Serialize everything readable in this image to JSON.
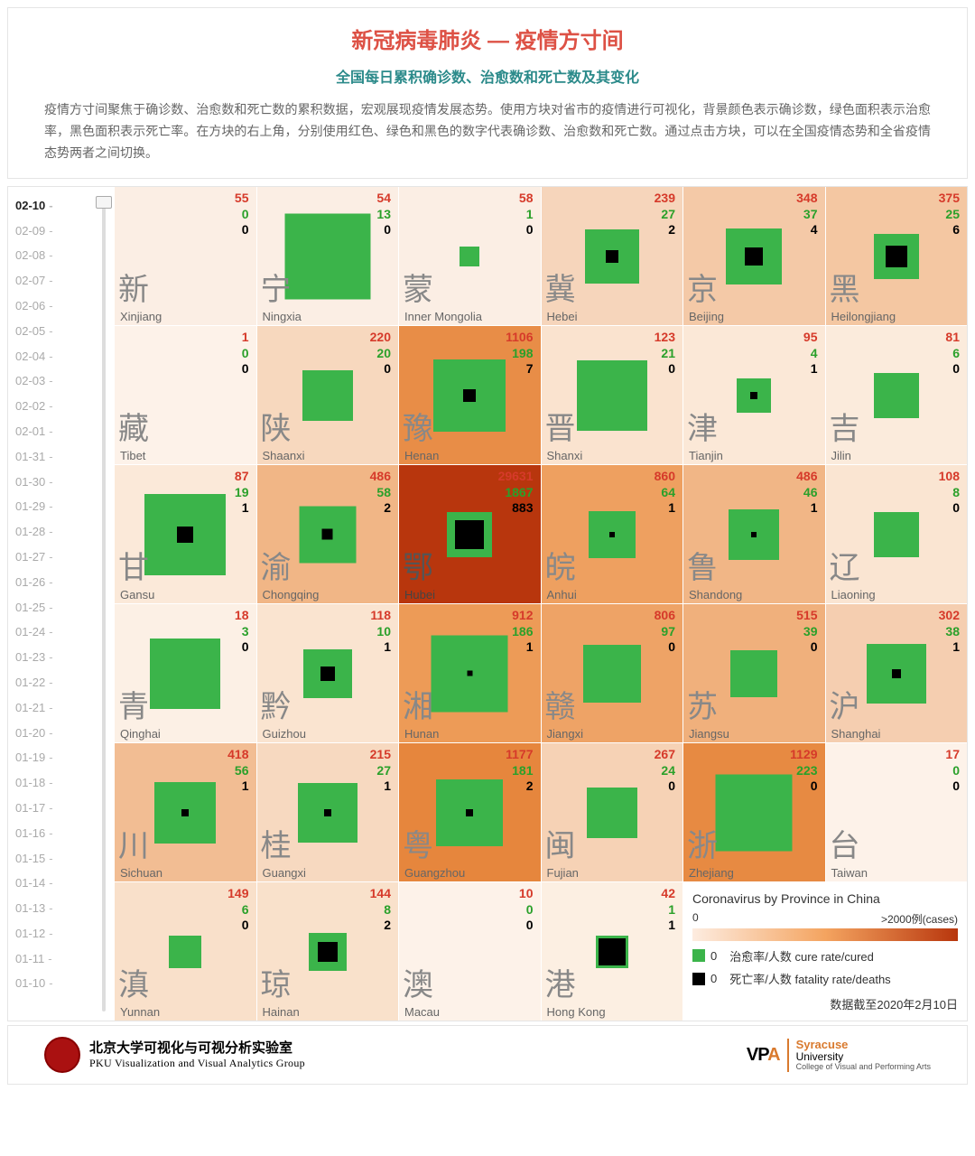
{
  "header": {
    "title": "新冠病毒肺炎 — 疫情方寸间",
    "subtitle": "全国每日累积确诊数、治愈数和死亡数及其变化",
    "description": "疫情方寸间聚焦于确诊数、治愈数和死亡数的累积数据，宏观展现疫情发展态势。使用方块对省市的疫情进行可视化，背景颜色表示确诊数，绿色面积表示治愈率，黑色面积表示死亡率。在方块的右上角，分别使用红色、绿色和黑色的数字代表确诊数、治愈数和死亡数。通过点击方块，可以在全国疫情态势和全省疫情态势两者之间切换。"
  },
  "timeline": {
    "current": "02-10",
    "dates": [
      "02-10",
      "02-09",
      "02-08",
      "02-07",
      "02-06",
      "02-05",
      "02-04",
      "02-03",
      "02-02",
      "02-01",
      "01-31",
      "01-30",
      "01-29",
      "01-28",
      "01-27",
      "01-26",
      "01-25",
      "01-24",
      "01-23",
      "01-22",
      "01-21",
      "01-20",
      "01-19",
      "01-18",
      "01-17",
      "01-16",
      "01-15",
      "01-14",
      "01-13",
      "01-12",
      "01-11",
      "01-10"
    ]
  },
  "colors": {
    "confirmed_text": "#d63a2a",
    "cured_text": "#2aa02a",
    "death_text": "#000000",
    "green_square": "#3bb44a",
    "black_square": "#000000"
  },
  "cells": [
    {
      "char": "新",
      "pinyin": "Xinjiang",
      "confirmed": 55,
      "cured": 0,
      "deaths": 0,
      "bg": "#fbeee4",
      "green": 0,
      "black": 0
    },
    {
      "char": "宁",
      "pinyin": "Ningxia",
      "confirmed": 54,
      "cured": 13,
      "deaths": 0,
      "bg": "#fbeee4",
      "green": 95,
      "black": 0
    },
    {
      "char": "蒙",
      "pinyin": "Inner Mongolia",
      "confirmed": 58,
      "cured": 1,
      "deaths": 0,
      "bg": "#fbeee4",
      "green": 22,
      "black": 0
    },
    {
      "char": "冀",
      "pinyin": "Hebei",
      "confirmed": 239,
      "cured": 27,
      "deaths": 2,
      "bg": "#f6d5bb",
      "green": 60,
      "black": 14
    },
    {
      "char": "京",
      "pinyin": "Beijing",
      "confirmed": 348,
      "cured": 37,
      "deaths": 4,
      "bg": "#f4c9a7",
      "green": 62,
      "black": 20
    },
    {
      "char": "黑",
      "pinyin": "Heilongjiang",
      "confirmed": 375,
      "cured": 25,
      "deaths": 6,
      "bg": "#f4c7a2",
      "green": 50,
      "black": 24
    },
    {
      "char": "藏",
      "pinyin": "Tibet",
      "confirmed": 1,
      "cured": 0,
      "deaths": 0,
      "bg": "#fdf2e9",
      "green": 0,
      "black": 0
    },
    {
      "char": "陕",
      "pinyin": "Shaanxi",
      "confirmed": 220,
      "cured": 20,
      "deaths": 0,
      "bg": "#f7d8be",
      "green": 56,
      "black": 0
    },
    {
      "char": "豫",
      "pinyin": "Henan",
      "confirmed": 1106,
      "cured": 198,
      "deaths": 7,
      "bg": "#e88d47",
      "green": 80,
      "black": 14
    },
    {
      "char": "晋",
      "pinyin": "Shanxi",
      "confirmed": 123,
      "cured": 21,
      "deaths": 0,
      "bg": "#fae3cf",
      "green": 78,
      "black": 0
    },
    {
      "char": "津",
      "pinyin": "Tianjin",
      "confirmed": 95,
      "cured": 4,
      "deaths": 1,
      "bg": "#fbe8d7",
      "green": 38,
      "black": 8
    },
    {
      "char": "吉",
      "pinyin": "Jilin",
      "confirmed": 81,
      "cured": 6,
      "deaths": 0,
      "bg": "#fbebdc",
      "green": 50,
      "black": 0
    },
    {
      "char": "甘",
      "pinyin": "Gansu",
      "confirmed": 87,
      "cured": 19,
      "deaths": 1,
      "bg": "#fbe9d9",
      "green": 90,
      "black": 18
    },
    {
      "char": "渝",
      "pinyin": "Chongqing",
      "confirmed": 486,
      "cured": 58,
      "deaths": 2,
      "bg": "#f1b686",
      "green": 63,
      "black": 12
    },
    {
      "char": "鄂",
      "pinyin": "Hubei",
      "confirmed": 29631,
      "cured": 1867,
      "deaths": 883,
      "bg": "#b8360d",
      "green": 50,
      "black": 32,
      "dark": true
    },
    {
      "char": "皖",
      "pinyin": "Anhui",
      "confirmed": 860,
      "cured": 64,
      "deaths": 1,
      "bg": "#eea060",
      "green": 52,
      "black": 6
    },
    {
      "char": "鲁",
      "pinyin": "Shandong",
      "confirmed": 486,
      "cured": 46,
      "deaths": 1,
      "bg": "#f1b686",
      "green": 56,
      "black": 6
    },
    {
      "char": "辽",
      "pinyin": "Liaoning",
      "confirmed": 108,
      "cured": 8,
      "deaths": 0,
      "bg": "#fae5d2",
      "green": 50,
      "black": 0
    },
    {
      "char": "青",
      "pinyin": "Qinghai",
      "confirmed": 18,
      "cured": 3,
      "deaths": 0,
      "bg": "#fcf0e5",
      "green": 78,
      "black": 0
    },
    {
      "char": "黔",
      "pinyin": "Guizhou",
      "confirmed": 118,
      "cured": 10,
      "deaths": 1,
      "bg": "#fae4d0",
      "green": 54,
      "black": 16
    },
    {
      "char": "湘",
      "pinyin": "Hunan",
      "confirmed": 912,
      "cured": 186,
      "deaths": 1,
      "bg": "#ed9b57",
      "green": 85,
      "black": 6
    },
    {
      "char": "赣",
      "pinyin": "Jiangxi",
      "confirmed": 806,
      "cured": 97,
      "deaths": 0,
      "bg": "#eea366",
      "green": 64,
      "black": 0
    },
    {
      "char": "苏",
      "pinyin": "Jiangsu",
      "confirmed": 515,
      "cured": 39,
      "deaths": 0,
      "bg": "#f0b07c",
      "green": 52,
      "black": 0
    },
    {
      "char": "沪",
      "pinyin": "Shanghai",
      "confirmed": 302,
      "cured": 38,
      "deaths": 1,
      "bg": "#f5ceb0",
      "green": 66,
      "black": 10
    },
    {
      "char": "川",
      "pinyin": "Sichuan",
      "confirmed": 418,
      "cured": 56,
      "deaths": 1,
      "bg": "#f2bd93",
      "green": 68,
      "black": 8
    },
    {
      "char": "桂",
      "pinyin": "Guangxi",
      "confirmed": 215,
      "cured": 27,
      "deaths": 1,
      "bg": "#f7d9c0",
      "green": 66,
      "black": 8
    },
    {
      "char": "粤",
      "pinyin": "Guangzhou",
      "confirmed": 1177,
      "cured": 181,
      "deaths": 2,
      "bg": "#e6863d",
      "green": 74,
      "black": 8
    },
    {
      "char": "闽",
      "pinyin": "Fujian",
      "confirmed": 267,
      "cured": 24,
      "deaths": 0,
      "bg": "#f6d2b5",
      "green": 56,
      "black": 0
    },
    {
      "char": "浙",
      "pinyin": "Zhejiang",
      "confirmed": 1129,
      "cured": 223,
      "deaths": 0,
      "bg": "#e78a42",
      "green": 85,
      "black": 0
    },
    {
      "char": "台",
      "pinyin": "Taiwan",
      "confirmed": 17,
      "cured": 0,
      "deaths": 0,
      "bg": "#fdf2e9",
      "green": 0,
      "black": 0
    },
    {
      "char": "滇",
      "pinyin": "Yunnan",
      "confirmed": 149,
      "cured": 6,
      "deaths": 0,
      "bg": "#f9e0ca",
      "green": 36,
      "black": 0
    },
    {
      "char": "琼",
      "pinyin": "Hainan",
      "confirmed": 144,
      "cured": 8,
      "deaths": 2,
      "bg": "#f9e1cb",
      "green": 42,
      "black": 22
    },
    {
      "char": "澳",
      "pinyin": "Macau",
      "confirmed": 10,
      "cured": 0,
      "deaths": 0,
      "bg": "#fdf2e9",
      "green": 0,
      "black": 0
    },
    {
      "char": "港",
      "pinyin": "Hong Kong",
      "confirmed": 42,
      "cured": 1,
      "deaths": 1,
      "bg": "#fcefe2",
      "green": 36,
      "black": 30
    }
  ],
  "legend": {
    "title": "Coronavirus by Province in China",
    "scale_min": "0",
    "scale_max": ">2000例(cases)",
    "cure_label": "治愈率/人数 cure rate/cured",
    "death_label": "死亡率/人数 fatality rate/deaths",
    "zero": "0",
    "date": "数据截至2020年2月10日",
    "gradient": [
      "#fdece0",
      "#f4a460",
      "#b8360d"
    ]
  },
  "footer": {
    "pku_cn": "北京大学可视化与可视分析实验室",
    "pku_en": "PKU Visualization and Visual Analytics Group",
    "vpa": "VPA",
    "syr_top": "Syracuse",
    "syr_bot": "University",
    "syr_sub": "College of Visual and Performing Arts"
  }
}
